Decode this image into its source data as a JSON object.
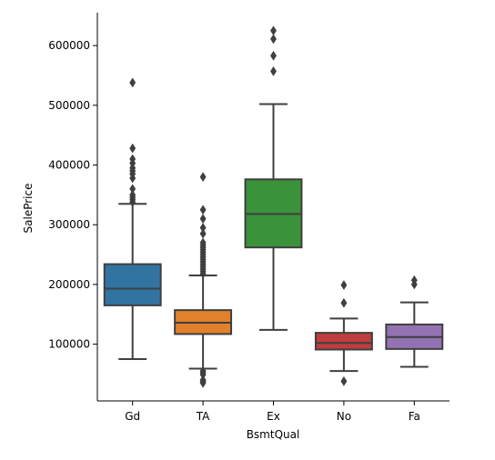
{
  "chart_data": {
    "type": "box",
    "xlabel": "BsmtQual",
    "ylabel": "SalePrice",
    "ylim": [
      5000,
      655000
    ],
    "yticks": [
      100000,
      200000,
      300000,
      400000,
      500000,
      600000
    ],
    "grid": false,
    "series": [
      {
        "category": "Gd",
        "color": "#3274a1",
        "whisker_low": 75000,
        "q1": 165000,
        "median": 193000,
        "q3": 234000,
        "whisker_high": 335000,
        "outliers": [
          338000,
          342000,
          346000,
          350000,
          360000,
          378000,
          385000,
          390000,
          395000,
          403000,
          410000,
          428000,
          538000
        ]
      },
      {
        "category": "TA",
        "color": "#e1812c",
        "whisker_low": 59000,
        "q1": 117000,
        "median": 136000,
        "q3": 157000,
        "whisker_high": 215000,
        "outliers": [
          35000,
          38000,
          40000,
          49000,
          52000,
          55000,
          218000,
          222000,
          226000,
          230000,
          234000,
          238000,
          242000,
          246000,
          250000,
          254000,
          258000,
          262000,
          266000,
          270000,
          285000,
          295000,
          310000,
          325000,
          380000
        ]
      },
      {
        "category": "Ex",
        "color": "#3a923a",
        "whisker_low": 124000,
        "q1": 262000,
        "median": 318000,
        "q3": 376000,
        "whisker_high": 502000,
        "outliers": [
          557000,
          583000,
          611000,
          625000
        ]
      },
      {
        "category": "No",
        "color": "#c03d3e",
        "whisker_low": 55000,
        "q1": 91000,
        "median": 102000,
        "q3": 119000,
        "whisker_high": 143000,
        "outliers": [
          38000,
          169000,
          199000
        ]
      },
      {
        "category": "Fa",
        "color": "#9372b2",
        "whisker_low": 62000,
        "q1": 92000,
        "median": 112000,
        "q3": 133000,
        "whisker_high": 170000,
        "outliers": [
          200000,
          207000
        ]
      }
    ]
  }
}
